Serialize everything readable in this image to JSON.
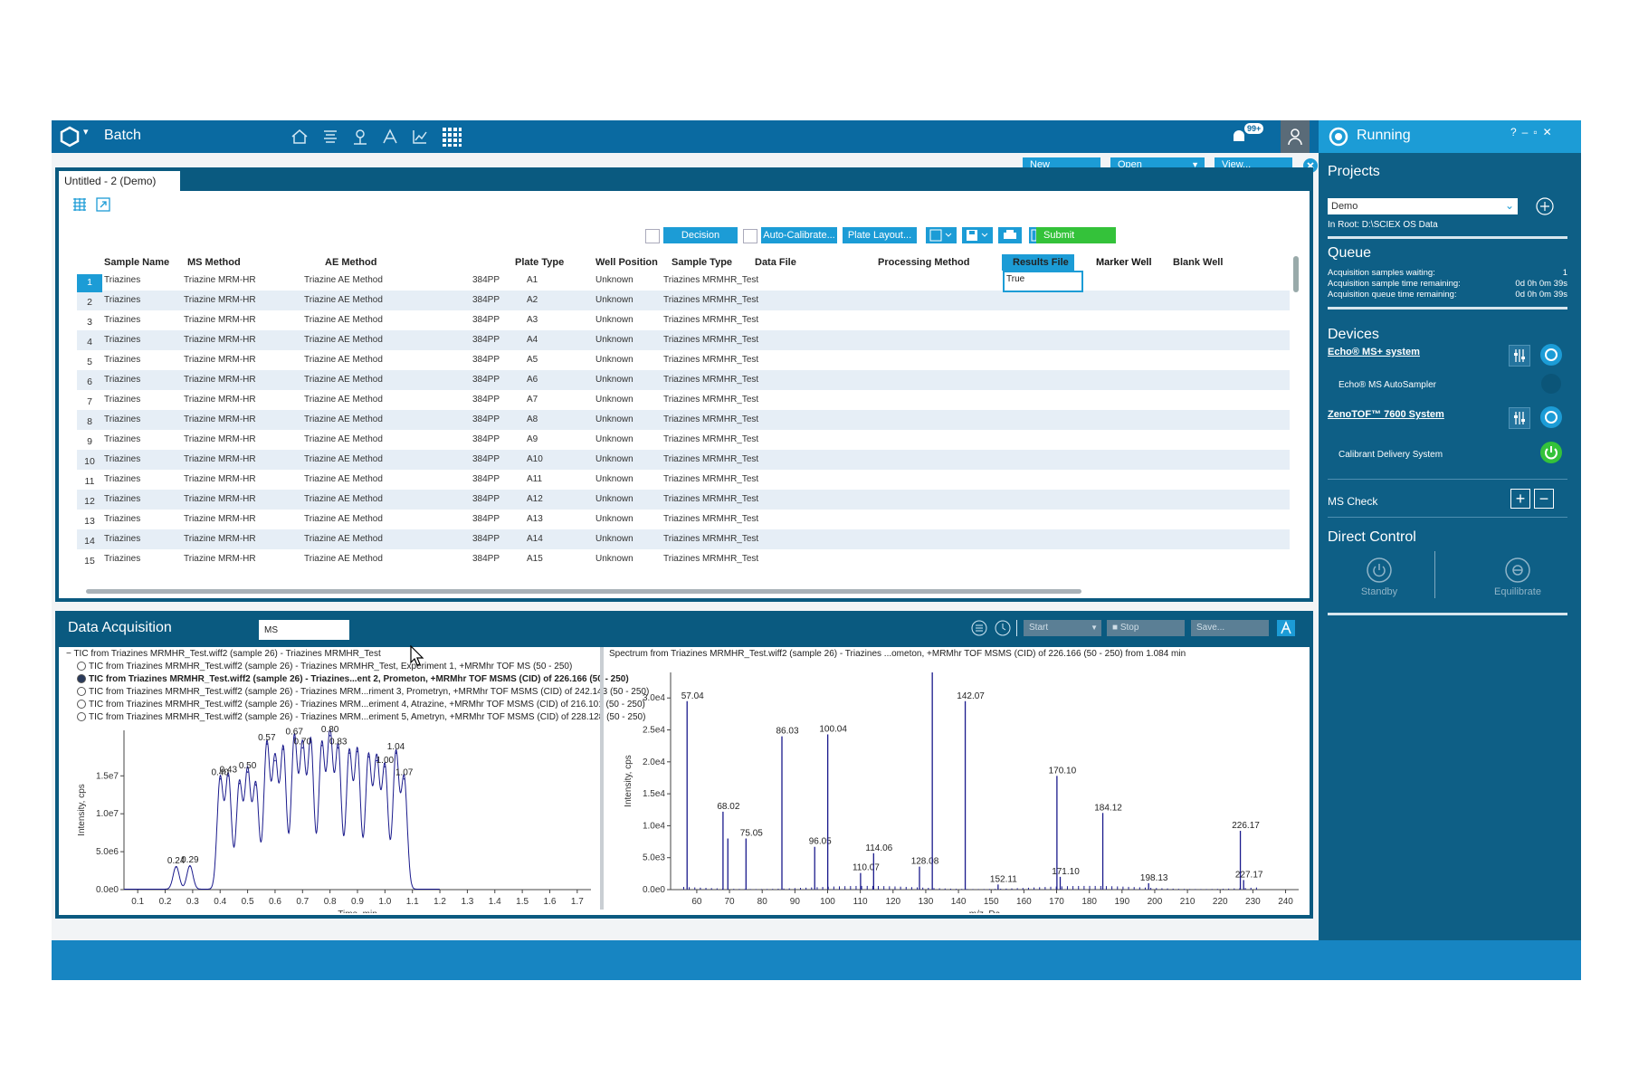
{
  "app": {
    "title": "Batch",
    "notif_badge": "99+"
  },
  "topbar": {
    "new": "New",
    "open": "Open",
    "view": "View..."
  },
  "tab": {
    "label": "Untitled - 2 (Demo)"
  },
  "toolbar": {
    "decision_rules": "Decision Rules...",
    "auto_calibrate": "Auto-Calibrate...",
    "plate_layout": "Plate Layout...",
    "submit": "Submit"
  },
  "table": {
    "columns": [
      "Sample Name",
      "MS Method",
      "AE Method",
      "Plate Type",
      "Well Position",
      "Sample Type",
      "Data File",
      "Processing Method",
      "Results File",
      "Marker Well",
      "Blank Well"
    ],
    "rows": [
      {
        "n": "1",
        "sample": "Triazines",
        "ms": "Triazine MRM-HR",
        "ae": "Triazine AE Method",
        "plate": "384PP",
        "well": "A1",
        "type": "Unknown",
        "file": "Triazines MRMHR_Test"
      },
      {
        "n": "2",
        "sample": "Triazines",
        "ms": "Triazine MRM-HR",
        "ae": "Triazine AE Method",
        "plate": "384PP",
        "well": "A2",
        "type": "Unknown",
        "file": "Triazines MRMHR_Test"
      },
      {
        "n": "3",
        "sample": "Triazines",
        "ms": "Triazine MRM-HR",
        "ae": "Triazine AE Method",
        "plate": "384PP",
        "well": "A3",
        "type": "Unknown",
        "file": "Triazines MRMHR_Test"
      },
      {
        "n": "4",
        "sample": "Triazines",
        "ms": "Triazine MRM-HR",
        "ae": "Triazine AE Method",
        "plate": "384PP",
        "well": "A4",
        "type": "Unknown",
        "file": "Triazines MRMHR_Test"
      },
      {
        "n": "5",
        "sample": "Triazines",
        "ms": "Triazine MRM-HR",
        "ae": "Triazine AE Method",
        "plate": "384PP",
        "well": "A5",
        "type": "Unknown",
        "file": "Triazines MRMHR_Test"
      },
      {
        "n": "6",
        "sample": "Triazines",
        "ms": "Triazine MRM-HR",
        "ae": "Triazine AE Method",
        "plate": "384PP",
        "well": "A6",
        "type": "Unknown",
        "file": "Triazines MRMHR_Test"
      },
      {
        "n": "7",
        "sample": "Triazines",
        "ms": "Triazine MRM-HR",
        "ae": "Triazine AE Method",
        "plate": "384PP",
        "well": "A7",
        "type": "Unknown",
        "file": "Triazines MRMHR_Test"
      },
      {
        "n": "8",
        "sample": "Triazines",
        "ms": "Triazine MRM-HR",
        "ae": "Triazine AE Method",
        "plate": "384PP",
        "well": "A8",
        "type": "Unknown",
        "file": "Triazines MRMHR_Test"
      },
      {
        "n": "9",
        "sample": "Triazines",
        "ms": "Triazine MRM-HR",
        "ae": "Triazine AE Method",
        "plate": "384PP",
        "well": "A9",
        "type": "Unknown",
        "file": "Triazines MRMHR_Test"
      },
      {
        "n": "10",
        "sample": "Triazines",
        "ms": "Triazine MRM-HR",
        "ae": "Triazine AE Method",
        "plate": "384PP",
        "well": "A10",
        "type": "Unknown",
        "file": "Triazines MRMHR_Test"
      },
      {
        "n": "11",
        "sample": "Triazines",
        "ms": "Triazine MRM-HR",
        "ae": "Triazine AE Method",
        "plate": "384PP",
        "well": "A11",
        "type": "Unknown",
        "file": "Triazines MRMHR_Test"
      },
      {
        "n": "12",
        "sample": "Triazines",
        "ms": "Triazine MRM-HR",
        "ae": "Triazine AE Method",
        "plate": "384PP",
        "well": "A12",
        "type": "Unknown",
        "file": "Triazines MRMHR_Test"
      },
      {
        "n": "13",
        "sample": "Triazines",
        "ms": "Triazine MRM-HR",
        "ae": "Triazine AE Method",
        "plate": "384PP",
        "well": "A13",
        "type": "Unknown",
        "file": "Triazines MRMHR_Test"
      },
      {
        "n": "14",
        "sample": "Triazines",
        "ms": "Triazine MRM-HR",
        "ae": "Triazine AE Method",
        "plate": "384PP",
        "well": "A14",
        "type": "Unknown",
        "file": "Triazines MRMHR_Test"
      },
      {
        "n": "15",
        "sample": "Triazines",
        "ms": "Triazine MRM-HR",
        "ae": "Triazine AE Method",
        "plate": "384PP",
        "well": "A15",
        "type": "Unknown",
        "file": "Triazines MRMHR_Test"
      }
    ],
    "marker_value": "True"
  },
  "acquisition": {
    "title": "Data Acquisition",
    "ms_field": "MS",
    "start": "Start",
    "stop": "Stop",
    "save": "Save...",
    "tic_items": [
      "TIC from Triazines MRMHR_Test.wiff2 (sample 26) - Triazines MRMHR_Test",
      "TIC from Triazines MRMHR_Test.wiff2 (sample 26) - Triazines MRMHR_Test, Experiment 1, +MRMhr TOF MS (50 - 250)",
      "TIC from Triazines MRMHR_Test.wiff2 (sample 26) - Triazines...ent 2, Prometon, +MRMhr TOF MSMS (CID) of 226.166 (50 - 250)",
      "TIC from Triazines MRMHR_Test.wiff2 (sample 26) - Triazines MRM...riment 3, Prometryn, +MRMhr TOF MSMS (CID) of 242.143 (50 - 250)",
      "TIC from Triazines MRMHR_Test.wiff2 (sample 26) - Triazines MRM...eriment 4, Atrazine, +MRMhr TOF MSMS (CID) of 216.101 (50 - 250)",
      "TIC from Triazines MRMHR_Test.wiff2 (sample 26) - Triazines MRM...eriment 5, Ametryn, +MRMhr TOF MSMS (CID) of 228.128 (50 - 250)"
    ],
    "spectrum_title": "Spectrum from Triazines MRMHR_Test.wiff2 (sample 26) - Triazines ...ometon, +MRMhr TOF MSMS (CID) of 226.166 (50 - 250) from 1.084 min"
  },
  "right_panel": {
    "status": "Running",
    "projects_title": "Projects",
    "project": "Demo",
    "root": "In Root: D:\\SCIEX OS Data",
    "queue_title": "Queue",
    "queue": [
      {
        "label": "Acquisition samples waiting:",
        "value": "1"
      },
      {
        "label": "Acquisition sample time remaining:",
        "value": "0d 0h 0m 39s"
      },
      {
        "label": "Acquisition queue time remaining:",
        "value": "0d 0h 0m 39s"
      }
    ],
    "devices_title": "Devices",
    "echo_system": "Echo® MS+ system",
    "echo_autosampler": "Echo® MS AutoSampler",
    "zeno_system": "ZenoTOF™ 7600 System",
    "calibrant": "Calibrant Delivery System",
    "ms_check": "MS Check",
    "direct_control": "Direct Control",
    "standby": "Standby",
    "equilibrate": "Equilibrate"
  },
  "colors": {
    "accent": "#1c9cd6",
    "dark": "#0a5a80",
    "submit": "#34c23a",
    "plot": "#1a1a8c"
  },
  "chart_data": [
    {
      "type": "line",
      "xlabel": "Time, min",
      "ylabel": "Intensity, cps",
      "xlim": [
        0.05,
        1.75
      ],
      "ylim": [
        0,
        21000000
      ],
      "xticks": [
        "0.1",
        "0.2",
        "0.3",
        "0.4",
        "0.5",
        "0.6",
        "0.7",
        "0.8",
        "0.9",
        "1.0",
        "1.1",
        "1.2",
        "1.3",
        "1.4",
        "1.5",
        "1.6",
        "1.7"
      ],
      "yticks": [
        {
          "v": 0,
          "label": "0.0e0"
        },
        {
          "v": 5000000,
          "label": "5.0e6"
        },
        {
          "v": 10000000,
          "label": "1.0e7"
        },
        {
          "v": 15000000,
          "label": "1.5e7"
        }
      ],
      "peaks": [
        {
          "x": 0.24,
          "y": 3000000,
          "label": "0.24"
        },
        {
          "x": 0.29,
          "y": 3100000,
          "label": "0.29"
        },
        {
          "x": 0.4,
          "y": 14600000,
          "label": "0.40"
        },
        {
          "x": 0.43,
          "y": 15000000,
          "label": "0.43"
        },
        {
          "x": 0.47,
          "y": 14000000,
          "label": ""
        },
        {
          "x": 0.5,
          "y": 15500000,
          "label": "0.50"
        },
        {
          "x": 0.53,
          "y": 13800000,
          "label": ""
        },
        {
          "x": 0.57,
          "y": 19200000,
          "label": "0.57"
        },
        {
          "x": 0.6,
          "y": 17000000,
          "label": ""
        },
        {
          "x": 0.63,
          "y": 18500000,
          "label": ""
        },
        {
          "x": 0.67,
          "y": 20000000,
          "label": "0.67"
        },
        {
          "x": 0.7,
          "y": 18700000,
          "label": "0.70"
        },
        {
          "x": 0.73,
          "y": 19500000,
          "label": ""
        },
        {
          "x": 0.77,
          "y": 19000000,
          "label": ""
        },
        {
          "x": 0.8,
          "y": 20300000,
          "label": "0.80"
        },
        {
          "x": 0.83,
          "y": 18700000,
          "label": "0.83"
        },
        {
          "x": 0.87,
          "y": 18000000,
          "label": ""
        },
        {
          "x": 0.9,
          "y": 18200000,
          "label": ""
        },
        {
          "x": 0.94,
          "y": 17500000,
          "label": ""
        },
        {
          "x": 0.97,
          "y": 17000000,
          "label": ""
        },
        {
          "x": 1.0,
          "y": 16200000,
          "label": "1.00"
        },
        {
          "x": 1.04,
          "y": 18000000,
          "label": "1.04"
        },
        {
          "x": 1.07,
          "y": 14600000,
          "label": "1.07"
        }
      ]
    },
    {
      "type": "bar",
      "xlabel": "m/z, Da",
      "ylabel": "Intensity, cps",
      "xlim": [
        52,
        244
      ],
      "ylim": [
        0,
        34000
      ],
      "xticks": [
        "60",
        "70",
        "80",
        "90",
        "100",
        "110",
        "120",
        "130",
        "140",
        "150",
        "160",
        "170",
        "180",
        "190",
        "200",
        "210",
        "220",
        "230",
        "240"
      ],
      "yticks": [
        {
          "v": 0,
          "label": "0.0e0"
        },
        {
          "v": 5000,
          "label": "5.0e3"
        },
        {
          "v": 10000,
          "label": "1.0e4"
        },
        {
          "v": 15000,
          "label": "1.5e4"
        },
        {
          "v": 20000,
          "label": "2.0e4"
        },
        {
          "v": 25000,
          "label": "2.5e4"
        },
        {
          "v": 30000,
          "label": "3.0e4"
        }
      ],
      "peaks": [
        {
          "x": 57.04,
          "y": 29500,
          "label": "57.04"
        },
        {
          "x": 68.02,
          "y": 12200,
          "label": "68.02"
        },
        {
          "x": 69.5,
          "y": 8000,
          "label": ""
        },
        {
          "x": 75.05,
          "y": 8000,
          "label": "75.05"
        },
        {
          "x": 86.03,
          "y": 24000,
          "label": "86.03"
        },
        {
          "x": 96.05,
          "y": 6700,
          "label": "96.05"
        },
        {
          "x": 100.04,
          "y": 24300,
          "label": "100.04"
        },
        {
          "x": 110.07,
          "y": 2600,
          "label": "110.07"
        },
        {
          "x": 114.06,
          "y": 5700,
          "label": "114.06"
        },
        {
          "x": 128.08,
          "y": 3600,
          "label": "128.08"
        },
        {
          "x": 132.0,
          "y": 34000,
          "label": ""
        },
        {
          "x": 142.07,
          "y": 29500,
          "label": "142.07"
        },
        {
          "x": 152.11,
          "y": 800,
          "label": "152.11"
        },
        {
          "x": 170.1,
          "y": 17800,
          "label": "170.10"
        },
        {
          "x": 171.1,
          "y": 2000,
          "label": "171.10"
        },
        {
          "x": 184.12,
          "y": 12000,
          "label": "184.12"
        },
        {
          "x": 198.13,
          "y": 1000,
          "label": "198.13"
        },
        {
          "x": 226.17,
          "y": 9200,
          "label": "226.17"
        },
        {
          "x": 227.17,
          "y": 1500,
          "label": "227.17"
        }
      ]
    }
  ]
}
